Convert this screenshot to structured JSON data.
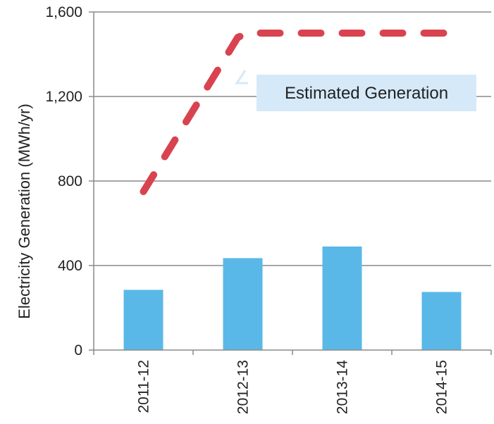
{
  "chart_data": {
    "type": "bar",
    "title": "",
    "xlabel": "",
    "ylabel": "Electricity Generation (MWh/yr)",
    "ylim": [
      0,
      1600
    ],
    "yticks": [
      0,
      400,
      800,
      1200,
      1600
    ],
    "ytick_labels": [
      "0",
      "400",
      "800",
      "1,200",
      "1,600"
    ],
    "categories": [
      "2011-12",
      "2012-13",
      "2013-14",
      "2014-15"
    ],
    "grid": true,
    "series": [
      {
        "type": "bar",
        "values": [
          285,
          435,
          490,
          275
        ],
        "color": "#5ab8e8"
      },
      {
        "type": "line",
        "style": "dashed",
        "color": "#d9434f",
        "points": [
          {
            "x": 0,
            "y": 750
          },
          {
            "x": 0.95,
            "y": 1480
          },
          {
            "x": 1.05,
            "y": 1500
          },
          {
            "x": 3.1,
            "y": 1500
          }
        ]
      }
    ],
    "annotation": {
      "text": "Estimated Generation",
      "box_color": "#d6e9f8"
    }
  }
}
